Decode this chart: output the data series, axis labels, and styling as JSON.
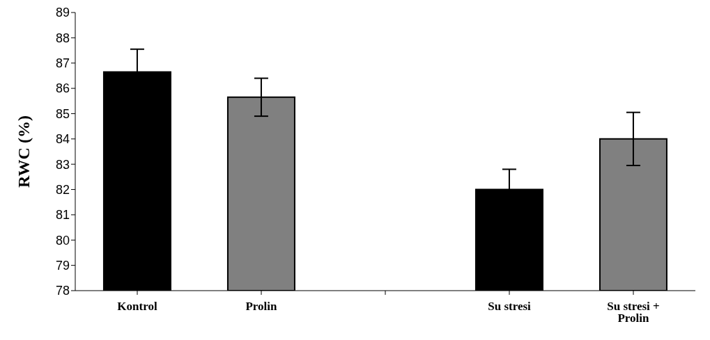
{
  "chart_data": {
    "type": "bar",
    "ylabel": "RWC (%)",
    "categories": [
      "Kontrol",
      "Prolin",
      null,
      "Su stresi",
      "Su stresi + Prolin"
    ],
    "values": [
      86.65,
      85.65,
      null,
      82.0,
      84.0
    ],
    "errors": [
      0.9,
      0.75,
      null,
      0.8,
      1.05
    ],
    "colors": [
      "#000000",
      "#808080",
      "#000000",
      "#000000",
      "#808080"
    ],
    "ylim": [
      78,
      89
    ],
    "yticks": [
      78,
      79,
      80,
      81,
      82,
      83,
      84,
      85,
      86,
      87,
      88,
      89
    ],
    "grid": false,
    "legend": false
  }
}
